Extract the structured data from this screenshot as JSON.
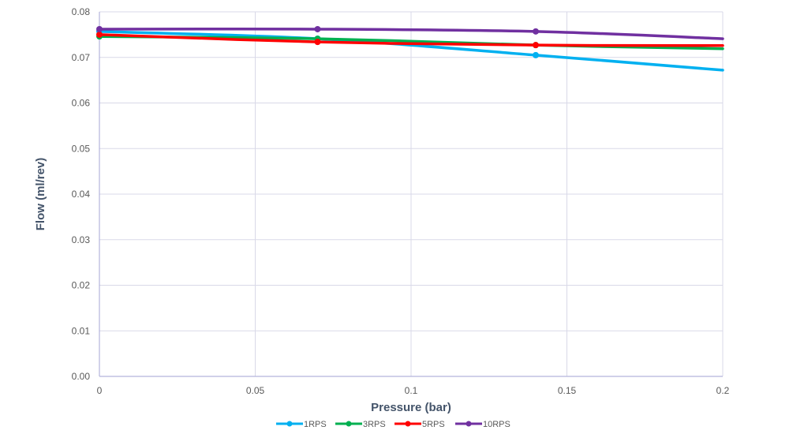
{
  "chart_data": {
    "type": "line",
    "title": "",
    "xlabel": "Pressure (bar)",
    "ylabel": "Flow (ml/rev)",
    "xlim": [
      0,
      0.2
    ],
    "ylim": [
      0,
      0.08
    ],
    "x_ticks": [
      "0",
      "0.05",
      "0.1",
      "0.15",
      "0.2"
    ],
    "y_ticks": [
      "0.00",
      "0.01",
      "0.02",
      "0.03",
      "0.04",
      "0.05",
      "0.06",
      "0.07",
      "0.08"
    ],
    "grid": true,
    "smooth": true,
    "legend_position": "bottom",
    "x": [
      0,
      0.07,
      0.14,
      0.2
    ],
    "series": [
      {
        "name": "1RPS",
        "color": "#00b0f0",
        "values": [
          0.0757,
          0.0741,
          0.0705,
          0.0672
        ]
      },
      {
        "name": "3RPS",
        "color": "#00b050",
        "values": [
          0.0746,
          0.0741,
          0.0727,
          0.0719
        ]
      },
      {
        "name": "5RPS",
        "color": "#ff0000",
        "values": [
          0.075,
          0.0734,
          0.0727,
          0.0726
        ]
      },
      {
        "name": "10RPS",
        "color": "#7030a0",
        "values": [
          0.0762,
          0.0762,
          0.0757,
          0.0741
        ]
      }
    ]
  }
}
